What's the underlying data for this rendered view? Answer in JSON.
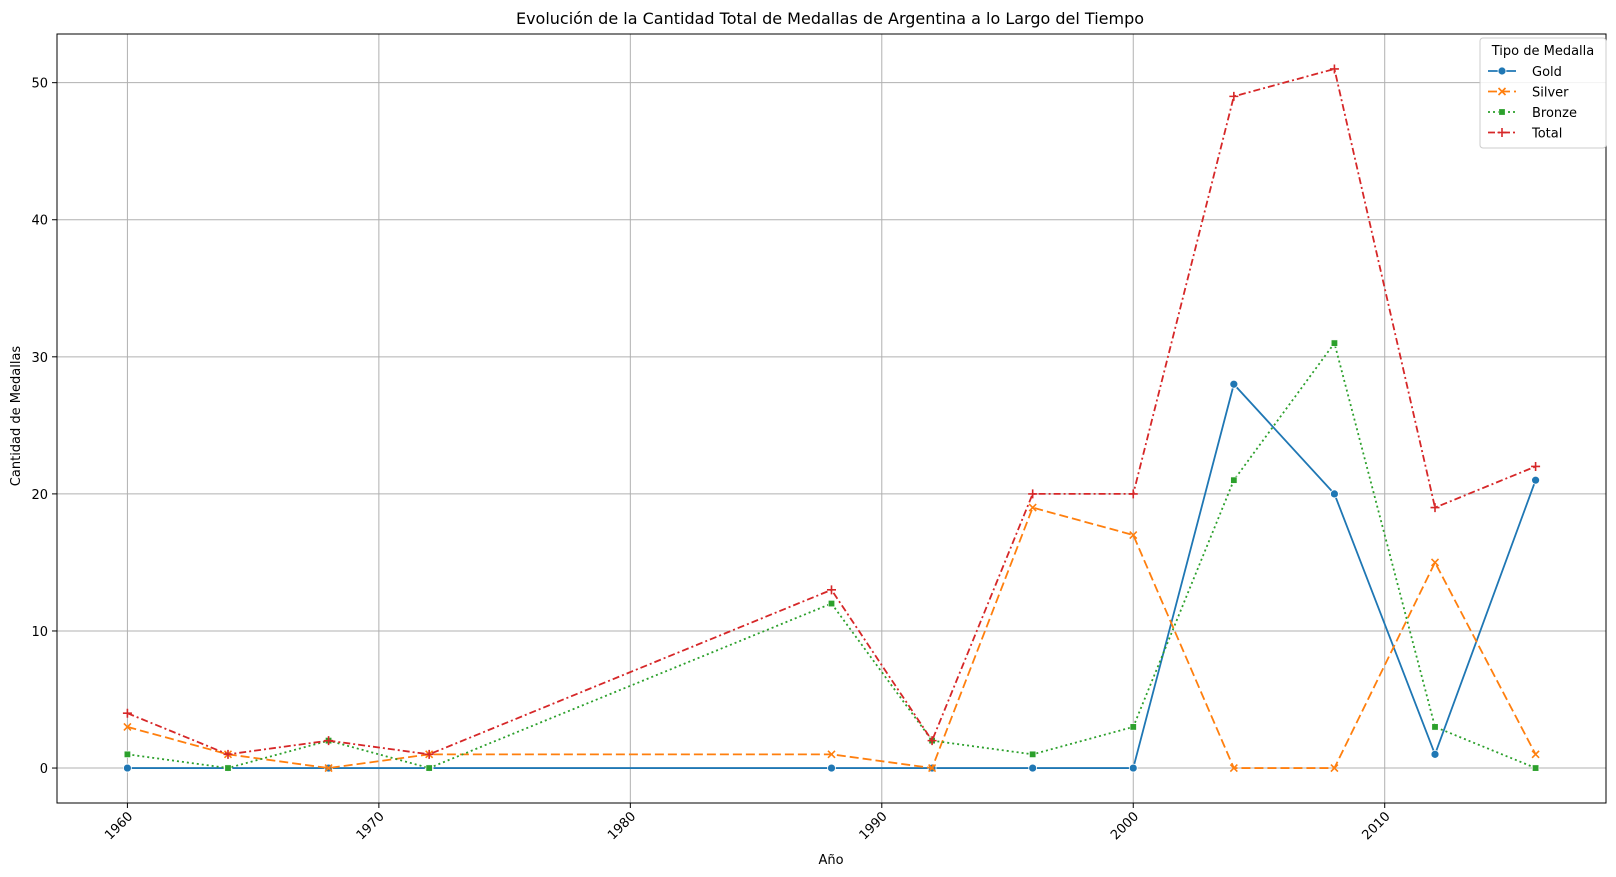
{
  "chart_data": {
    "type": "line",
    "title": "Evolución de la Cantidad Total de Medallas de Argentina a lo Largo del Tiempo",
    "xlabel": "Año",
    "ylabel": "Cantidad de Medallas",
    "xlim": [
      1957.2,
      2018.8
    ],
    "ylim": [
      -2.55,
      53.55
    ],
    "x_ticks": [
      1960,
      1970,
      1980,
      1990,
      2000,
      2010
    ],
    "y_ticks": [
      0,
      10,
      20,
      30,
      40,
      50
    ],
    "grid": true,
    "legend": {
      "title": "Tipo de Medalla",
      "placement": "top-right"
    },
    "x": [
      1960,
      1964,
      1968,
      1972,
      1988,
      1992,
      1996,
      2000,
      2004,
      2008,
      2012,
      2016
    ],
    "series": [
      {
        "name": "Gold",
        "color": "#1f77b4",
        "dash": "solid",
        "marker": "circle",
        "values": [
          0,
          0,
          0,
          0,
          0,
          0,
          0,
          0,
          28,
          20,
          1,
          21
        ]
      },
      {
        "name": "Silver",
        "color": "#ff7f0e",
        "dash": "dashed",
        "marker": "x",
        "values": [
          3,
          1,
          0,
          1,
          1,
          0,
          19,
          17,
          0,
          0,
          15,
          1
        ]
      },
      {
        "name": "Bronze",
        "color": "#2ca02c",
        "dash": "dotted",
        "marker": "square",
        "values": [
          1,
          0,
          2,
          0,
          12,
          2,
          1,
          3,
          21,
          31,
          3,
          0
        ]
      },
      {
        "name": "Total",
        "color": "#d62728",
        "dash": "dashdot",
        "marker": "plus",
        "values": [
          4,
          1,
          2,
          1,
          13,
          2,
          20,
          20,
          49,
          51,
          19,
          22
        ]
      }
    ]
  }
}
